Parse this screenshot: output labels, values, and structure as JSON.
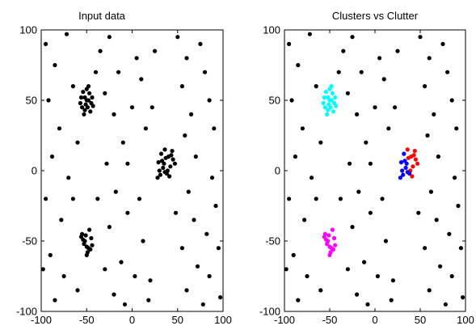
{
  "chart_data": [
    {
      "type": "scatter",
      "title": "Input data",
      "xlabel": "",
      "ylabel": "",
      "xlim": [
        -100,
        100
      ],
      "ylim": [
        -100,
        100
      ],
      "xticks": [
        -100,
        -50,
        0,
        50,
        100
      ],
      "yticks": [
        -100,
        -50,
        0,
        50,
        100
      ],
      "grid": false,
      "marker_color": "#000000",
      "series": [
        {
          "points": [
            [
              -52,
              52
            ],
            [
              -48,
              50
            ],
            [
              -55,
              45
            ],
            [
              -50,
              58
            ],
            [
              -45,
              48
            ],
            [
              -53,
              40
            ],
            [
              -47,
              55
            ],
            [
              -49,
              45
            ],
            [
              -56,
              52
            ],
            [
              -44,
              52
            ],
            [
              -51,
              47
            ],
            [
              -46,
              42
            ],
            [
              -54,
              56
            ],
            [
              -48,
              60
            ],
            [
              -50,
              50
            ],
            [
              -43,
              46
            ],
            [
              -57,
              48
            ],
            [
              -52,
              43
            ],
            [
              35,
              5
            ],
            [
              40,
              10
            ],
            [
              30,
              0
            ],
            [
              45,
              8
            ],
            [
              38,
              -2
            ],
            [
              32,
              12
            ],
            [
              42,
              3
            ],
            [
              36,
              15
            ],
            [
              28,
              -5
            ],
            [
              44,
              14
            ],
            [
              33,
              7
            ],
            [
              39,
              0
            ],
            [
              31,
              -3
            ],
            [
              47,
              5
            ],
            [
              37,
              9
            ],
            [
              41,
              -4
            ],
            [
              34,
              2
            ],
            [
              29,
              6
            ],
            [
              43,
              11
            ],
            [
              36,
              -1
            ],
            [
              -52,
              -50
            ],
            [
              -48,
              -55
            ],
            [
              -55,
              -45
            ],
            [
              -50,
              -60
            ],
            [
              -45,
              -48
            ],
            [
              -53,
              -52
            ],
            [
              -47,
              -42
            ],
            [
              -49,
              -58
            ],
            [
              -56,
              -47
            ],
            [
              -44,
              -53
            ],
            [
              -51,
              -46
            ],
            [
              -46,
              -56
            ],
            [
              -54,
              -49
            ],
            [
              -50,
              -54
            ],
            [
              -95,
              90
            ],
            [
              -85,
              75
            ],
            [
              -72,
              97
            ],
            [
              -92,
              50
            ],
            [
              -80,
              30
            ],
            [
              -88,
              10
            ],
            [
              -70,
              -5
            ],
            [
              -95,
              -20
            ],
            [
              -78,
              -35
            ],
            [
              -90,
              -60
            ],
            [
              -75,
              -75
            ],
            [
              -85,
              -92
            ],
            [
              -60,
              -85
            ],
            [
              -98,
              -70
            ],
            [
              -65,
              60
            ],
            [
              -60,
              20
            ],
            [
              -35,
              85
            ],
            [
              -25,
              95
            ],
            [
              -30,
              55
            ],
            [
              -15,
              70
            ],
            [
              -20,
              40
            ],
            [
              -10,
              20
            ],
            [
              -28,
              5
            ],
            [
              -18,
              -15
            ],
            [
              -5,
              -30
            ],
            [
              -25,
              -40
            ],
            [
              -12,
              -65
            ],
            [
              -30,
              -70
            ],
            [
              -20,
              -88
            ],
            [
              -8,
              -95
            ],
            [
              0,
              45
            ],
            [
              5,
              80
            ],
            [
              10,
              65
            ],
            [
              15,
              30
            ],
            [
              8,
              -20
            ],
            [
              12,
              -50
            ],
            [
              20,
              -78
            ],
            [
              18,
              -92
            ],
            [
              25,
              85
            ],
            [
              22,
              45
            ],
            [
              50,
              95
            ],
            [
              60,
              80
            ],
            [
              55,
              60
            ],
            [
              65,
              40
            ],
            [
              58,
              25
            ],
            [
              70,
              10
            ],
            [
              62,
              -15
            ],
            [
              68,
              -35
            ],
            [
              55,
              -55
            ],
            [
              72,
              -68
            ],
            [
              60,
              -85
            ],
            [
              78,
              -95
            ],
            [
              80,
              70
            ],
            [
              85,
              50
            ],
            [
              90,
              30
            ],
            [
              88,
              -5
            ],
            [
              92,
              -25
            ],
            [
              95,
              -55
            ],
            [
              85,
              -75
            ],
            [
              97,
              -90
            ],
            [
              75,
              90
            ],
            [
              82,
              -45
            ],
            [
              -40,
              70
            ],
            [
              -38,
              -20
            ],
            [
              -5,
              5
            ],
            [
              48,
              -30
            ],
            [
              -65,
              -20
            ],
            [
              3,
              -75
            ]
          ]
        }
      ]
    },
    {
      "type": "scatter",
      "title": "Clusters vs Clutter",
      "xlabel": "",
      "ylabel": "",
      "xlim": [
        -100,
        100
      ],
      "ylim": [
        -100,
        100
      ],
      "xticks": [
        -100,
        -50,
        0,
        50,
        100
      ],
      "yticks": [
        -100,
        -50,
        0,
        50,
        100
      ],
      "grid": false,
      "series": [
        {
          "color": "#000000",
          "points": [
            [
              -95,
              90
            ],
            [
              -85,
              75
            ],
            [
              -72,
              97
            ],
            [
              -92,
              50
            ],
            [
              -80,
              30
            ],
            [
              -88,
              10
            ],
            [
              -70,
              -5
            ],
            [
              -95,
              -20
            ],
            [
              -78,
              -35
            ],
            [
              -90,
              -60
            ],
            [
              -75,
              -75
            ],
            [
              -85,
              -92
            ],
            [
              -60,
              -85
            ],
            [
              -98,
              -70
            ],
            [
              -65,
              60
            ],
            [
              -60,
              20
            ],
            [
              -35,
              85
            ],
            [
              -25,
              95
            ],
            [
              -30,
              55
            ],
            [
              -15,
              70
            ],
            [
              -20,
              40
            ],
            [
              -10,
              20
            ],
            [
              -28,
              5
            ],
            [
              -18,
              -15
            ],
            [
              -5,
              -30
            ],
            [
              -25,
              -40
            ],
            [
              -12,
              -65
            ],
            [
              -30,
              -70
            ],
            [
              -20,
              -88
            ],
            [
              -8,
              -95
            ],
            [
              0,
              45
            ],
            [
              5,
              80
            ],
            [
              10,
              65
            ],
            [
              15,
              30
            ],
            [
              8,
              -20
            ],
            [
              12,
              -50
            ],
            [
              20,
              -78
            ],
            [
              18,
              -92
            ],
            [
              25,
              85
            ],
            [
              22,
              45
            ],
            [
              50,
              95
            ],
            [
              60,
              80
            ],
            [
              55,
              60
            ],
            [
              65,
              40
            ],
            [
              58,
              25
            ],
            [
              70,
              10
            ],
            [
              62,
              -15
            ],
            [
              68,
              -35
            ],
            [
              55,
              -55
            ],
            [
              72,
              -68
            ],
            [
              60,
              -85
            ],
            [
              78,
              -95
            ],
            [
              80,
              70
            ],
            [
              85,
              50
            ],
            [
              90,
              30
            ],
            [
              88,
              -5
            ],
            [
              92,
              -25
            ],
            [
              95,
              -55
            ],
            [
              85,
              -75
            ],
            [
              97,
              -90
            ],
            [
              75,
              90
            ],
            [
              82,
              -45
            ],
            [
              -40,
              70
            ],
            [
              -38,
              -20
            ],
            [
              -5,
              5
            ],
            [
              48,
              -30
            ],
            [
              -65,
              -20
            ],
            [
              3,
              -75
            ]
          ]
        },
        {
          "color": "#00ffff",
          "points": [
            [
              -52,
              52
            ],
            [
              -48,
              50
            ],
            [
              -55,
              45
            ],
            [
              -50,
              58
            ],
            [
              -45,
              48
            ],
            [
              -53,
              40
            ],
            [
              -47,
              55
            ],
            [
              -49,
              45
            ],
            [
              -56,
              52
            ],
            [
              -44,
              52
            ],
            [
              -51,
              47
            ],
            [
              -46,
              42
            ],
            [
              -54,
              56
            ],
            [
              -48,
              60
            ],
            [
              -50,
              50
            ],
            [
              -43,
              46
            ],
            [
              -57,
              48
            ],
            [
              -52,
              43
            ]
          ]
        },
        {
          "color": "#ff0000",
          "points": [
            [
              40,
              10
            ],
            [
              45,
              8
            ],
            [
              42,
              3
            ],
            [
              36,
              15
            ],
            [
              44,
              14
            ],
            [
              39,
              0
            ],
            [
              47,
              5
            ],
            [
              37,
              9
            ],
            [
              43,
              11
            ],
            [
              41,
              -4
            ]
          ]
        },
        {
          "color": "#0000ff",
          "points": [
            [
              35,
              5
            ],
            [
              30,
              0
            ],
            [
              38,
              -2
            ],
            [
              32,
              12
            ],
            [
              28,
              -5
            ],
            [
              33,
              7
            ],
            [
              31,
              -3
            ],
            [
              34,
              2
            ],
            [
              29,
              6
            ],
            [
              36,
              -1
            ]
          ]
        },
        {
          "color": "#ff00ff",
          "points": [
            [
              -52,
              -50
            ],
            [
              -48,
              -55
            ],
            [
              -55,
              -45
            ],
            [
              -50,
              -60
            ],
            [
              -45,
              -48
            ],
            [
              -53,
              -52
            ],
            [
              -47,
              -42
            ],
            [
              -49,
              -58
            ],
            [
              -56,
              -47
            ],
            [
              -44,
              -53
            ],
            [
              -51,
              -46
            ],
            [
              -46,
              -56
            ],
            [
              -54,
              -49
            ],
            [
              -50,
              -54
            ]
          ]
        }
      ]
    }
  ]
}
